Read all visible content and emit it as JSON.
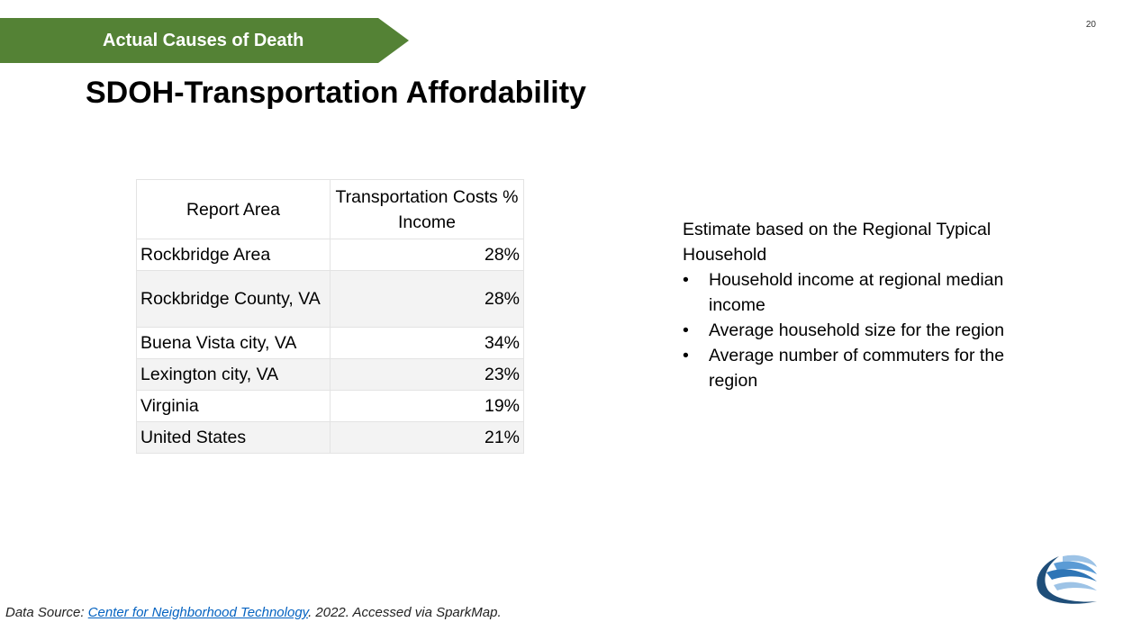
{
  "banner": {
    "label": "Actual Causes of Death"
  },
  "page_number": "20",
  "title": "SDOH-Transportation Affordability",
  "table": {
    "headers": {
      "area": "Report Area",
      "value": "Transportation Costs % Income"
    },
    "rows": [
      {
        "area": "Rockbridge Area",
        "value": "28%"
      },
      {
        "area": "Rockbridge County, VA",
        "value": "28%"
      },
      {
        "area": "Buena Vista city, VA",
        "value": "34%"
      },
      {
        "area": "Lexington city, VA",
        "value": "23%"
      },
      {
        "area": "Virginia",
        "value": "19%"
      },
      {
        "area": "United States",
        "value": "21%"
      }
    ]
  },
  "notes": {
    "intro": "Estimate based on the Regional Typical Household",
    "bullets": [
      "Household income at regional median income",
      "Average household size for the region",
      "Average number of commuters for the region"
    ]
  },
  "source": {
    "prefix": "Data Source: ",
    "link": "Center for Neighborhood Technology",
    "suffix": ". 2022. Accessed via SparkMap."
  },
  "colors": {
    "banner": "#548235",
    "link": "#0563c1",
    "logo_dark": "#1f4e79",
    "logo_light": "#9dc3e6"
  }
}
